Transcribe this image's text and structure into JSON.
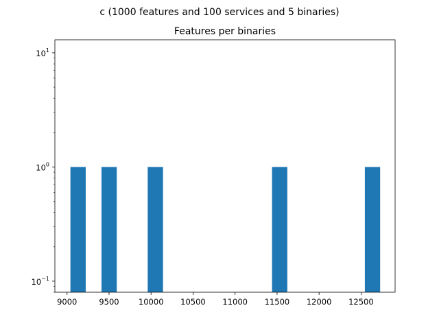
{
  "figure": {
    "suptitle": "c (1000 features and 100 services and 5 binaries)"
  },
  "chart_data": {
    "type": "bar",
    "title": "Features per binaries",
    "xlabel": "",
    "ylabel": "",
    "yscale": "log",
    "xlim": [
      8855,
      12905
    ],
    "ylim": [
      0.08,
      13
    ],
    "bar_color": "#1f77b4",
    "bars": [
      {
        "x0": 9040,
        "x1": 9222,
        "value": 1
      },
      {
        "x0": 9410,
        "x1": 9592,
        "value": 1
      },
      {
        "x0": 9960,
        "x1": 10142,
        "value": 1
      },
      {
        "x0": 11440,
        "x1": 11622,
        "value": 1
      },
      {
        "x0": 12545,
        "x1": 12727,
        "value": 1
      }
    ],
    "x_ticks": [
      9000,
      9500,
      10000,
      10500,
      11000,
      11500,
      12000,
      12500
    ],
    "x_tick_labels": [
      "9000",
      "9500",
      "10000",
      "10500",
      "11000",
      "11500",
      "12000",
      "12500"
    ],
    "y_major_ticks": [
      0.1,
      1,
      10
    ],
    "y_tick_labels": [
      {
        "base": "10",
        "exp": "−1"
      },
      {
        "base": "10",
        "exp": "0"
      },
      {
        "base": "10",
        "exp": "1"
      }
    ],
    "grid": false,
    "legend": "none"
  }
}
